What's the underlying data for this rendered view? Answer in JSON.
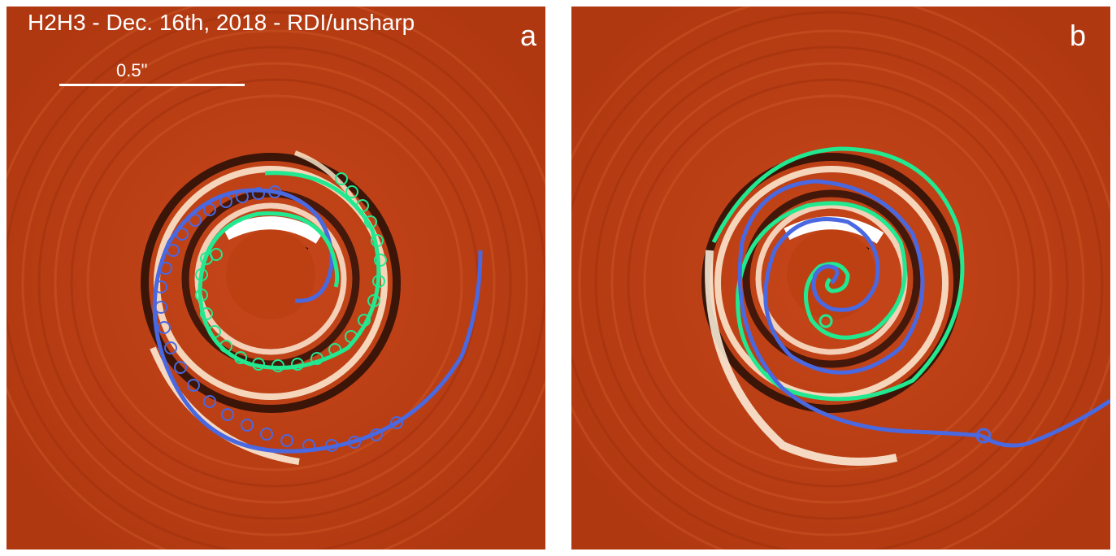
{
  "figure": {
    "title": "H2H3 - Dec. 16th, 2018 - RDI/unsharp",
    "scale_bar_label": "0.5\"",
    "panels": [
      {
        "label": "a"
      },
      {
        "label": "b"
      }
    ]
  },
  "colors": {
    "background_red": "#b83a12",
    "bright_ring": "#fff4e0",
    "dark_ring": "#1a0a05",
    "blue_spiral": "#4a68e0",
    "green_spiral": "#22e890",
    "text": "#ffffff"
  }
}
